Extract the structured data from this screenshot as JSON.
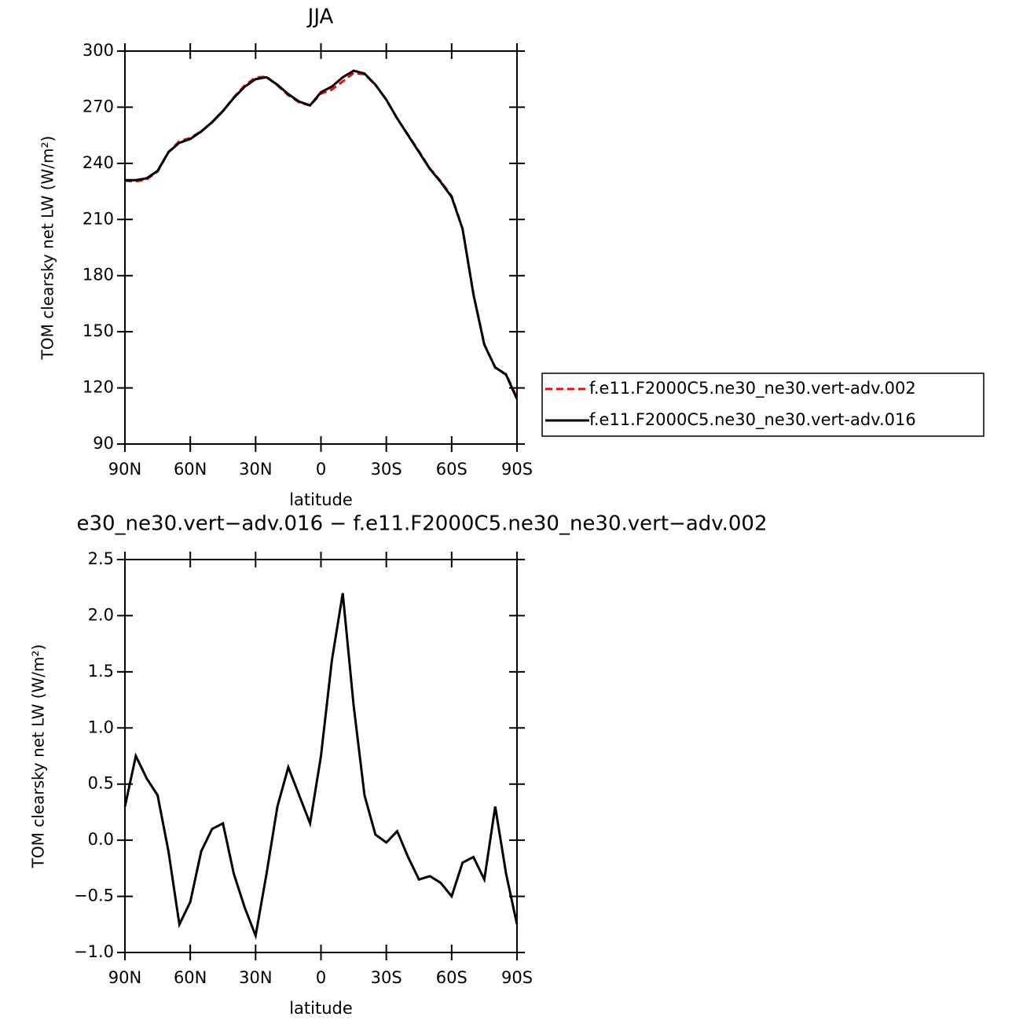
{
  "chart_data": [
    {
      "type": "line",
      "title": "JJA",
      "xlabel": "latitude",
      "ylabel": "TOM clearsky net LW (W/m²)",
      "x": [
        90,
        85,
        80,
        75,
        70,
        65,
        60,
        55,
        50,
        45,
        40,
        35,
        30,
        25,
        20,
        15,
        10,
        5,
        0,
        -5,
        -10,
        -15,
        -20,
        -25,
        -30,
        -35,
        -40,
        -45,
        -50,
        -55,
        -60,
        -65,
        -70,
        -75,
        -80,
        -85,
        -90
      ],
      "xlim": [
        90,
        -90
      ],
      "xticks": [
        {
          "value": 90,
          "label": "90N"
        },
        {
          "value": 60,
          "label": "60N"
        },
        {
          "value": 30,
          "label": "30N"
        },
        0,
        {
          "value": -30,
          "label": "30S"
        },
        {
          "value": -60,
          "label": "60S"
        },
        {
          "value": -90,
          "label": "90S"
        }
      ],
      "ylim": [
        90,
        300
      ],
      "yticks": [
        90,
        120,
        150,
        180,
        210,
        240,
        270,
        300
      ],
      "legend": "right",
      "series": [
        {
          "name": "f.e11.F2000C5.ne30_ne30.vert-adv.002",
          "color": "#ff0000",
          "line_style": "dashed",
          "values": [
            230.7,
            230.3,
            231.5,
            235.6,
            246.1,
            251.8,
            253.6,
            257.1,
            261.9,
            267.9,
            275.3,
            281.6,
            285.9,
            286.3,
            281.7,
            276.4,
            272.6,
            270.9,
            277.3,
            279.4,
            283.8,
            288.3,
            287.6,
            282,
            274,
            263.9,
            255.2,
            246.4,
            237.3,
            230.4,
            222.5,
            205.2,
            170.2,
            143.4,
            130.7,
            127.3,
            114.8
          ]
        },
        {
          "name": "f.e11.F2000C5.ne30_ne30.vert-adv.016",
          "color": "#000000",
          "line_style": "solid",
          "values": [
            231,
            231,
            232,
            236,
            246,
            251,
            253,
            257,
            262,
            268,
            275,
            281,
            285,
            286,
            282,
            277,
            273,
            271,
            278,
            281,
            286,
            289.5,
            288,
            282,
            274,
            264,
            255,
            246,
            237,
            230,
            222,
            205,
            170,
            143,
            131,
            127,
            114
          ]
        }
      ]
    },
    {
      "type": "line",
      "title": "e30_ne30.vert−adv.016 − f.e11.F2000C5.ne30_ne30.vert−adv.002",
      "xlabel": "latitude",
      "ylabel": "TOM clearsky net LW (W/m²)",
      "x": [
        90,
        85,
        80,
        75,
        70,
        65,
        60,
        55,
        50,
        45,
        40,
        35,
        30,
        25,
        20,
        15,
        10,
        5,
        0,
        -5,
        -10,
        -15,
        -20,
        -25,
        -30,
        -35,
        -40,
        -45,
        -50,
        -55,
        -60,
        -65,
        -70,
        -75,
        -80,
        -85,
        -90
      ],
      "xlim": [
        90,
        -90
      ],
      "xticks": [
        {
          "value": 90,
          "label": "90N"
        },
        {
          "value": 60,
          "label": "60N"
        },
        {
          "value": 30,
          "label": "30N"
        },
        0,
        {
          "value": -30,
          "label": "30S"
        },
        {
          "value": -60,
          "label": "60S"
        },
        {
          "value": -90,
          "label": "90S"
        }
      ],
      "ylim": [
        -1,
        2.5
      ],
      "yticks": [
        {
          "value": -1,
          "label": "−1.0"
        },
        {
          "value": -0.5,
          "label": "−0.5"
        },
        {
          "value": 0,
          "label": "0.0"
        },
        0.5,
        {
          "value": 1,
          "label": "1.0"
        },
        1.5,
        {
          "value": 2,
          "label": "2.0"
        },
        2.5
      ],
      "series": [
        {
          "color": "#000000",
          "line_style": "solid",
          "values": [
            0.3,
            0.75,
            0.55,
            0.4,
            -0.1,
            -0.75,
            -0.55,
            -0.1,
            0.1,
            0.15,
            -0.3,
            -0.6,
            -0.85,
            -0.3,
            0.3,
            0.65,
            0.4,
            0.15,
            0.75,
            1.6,
            2.2,
            1.2,
            0.4,
            0.05,
            -0.02,
            0.08,
            -0.15,
            -0.35,
            -0.32,
            -0.38,
            -0.5,
            -0.2,
            -0.15,
            -0.35,
            0.3,
            -0.3,
            -0.75
          ]
        }
      ]
    }
  ]
}
